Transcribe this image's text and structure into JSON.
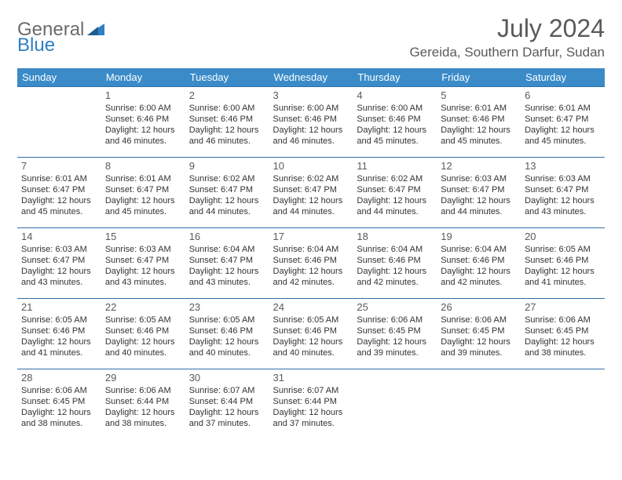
{
  "brand": {
    "part1": "General",
    "part2": "Blue"
  },
  "title": "July 2024",
  "location": "Gereida, Southern Darfur, Sudan",
  "colors": {
    "header_bg": "#3b8bc9",
    "header_text": "#ffffff",
    "row_border": "#2f6fa8",
    "brand_gray": "#6b6b6b",
    "brand_blue": "#2f7fc2",
    "text": "#333333",
    "title_gray": "#5a5a5a"
  },
  "weekdays": [
    "Sunday",
    "Monday",
    "Tuesday",
    "Wednesday",
    "Thursday",
    "Friday",
    "Saturday"
  ],
  "weeks": [
    [
      null,
      {
        "n": "1",
        "sr": "Sunrise: 6:00 AM",
        "ss": "Sunset: 6:46 PM",
        "dl": "Daylight: 12 hours and 46 minutes."
      },
      {
        "n": "2",
        "sr": "Sunrise: 6:00 AM",
        "ss": "Sunset: 6:46 PM",
        "dl": "Daylight: 12 hours and 46 minutes."
      },
      {
        "n": "3",
        "sr": "Sunrise: 6:00 AM",
        "ss": "Sunset: 6:46 PM",
        "dl": "Daylight: 12 hours and 46 minutes."
      },
      {
        "n": "4",
        "sr": "Sunrise: 6:00 AM",
        "ss": "Sunset: 6:46 PM",
        "dl": "Daylight: 12 hours and 45 minutes."
      },
      {
        "n": "5",
        "sr": "Sunrise: 6:01 AM",
        "ss": "Sunset: 6:46 PM",
        "dl": "Daylight: 12 hours and 45 minutes."
      },
      {
        "n": "6",
        "sr": "Sunrise: 6:01 AM",
        "ss": "Sunset: 6:47 PM",
        "dl": "Daylight: 12 hours and 45 minutes."
      }
    ],
    [
      {
        "n": "7",
        "sr": "Sunrise: 6:01 AM",
        "ss": "Sunset: 6:47 PM",
        "dl": "Daylight: 12 hours and 45 minutes."
      },
      {
        "n": "8",
        "sr": "Sunrise: 6:01 AM",
        "ss": "Sunset: 6:47 PM",
        "dl": "Daylight: 12 hours and 45 minutes."
      },
      {
        "n": "9",
        "sr": "Sunrise: 6:02 AM",
        "ss": "Sunset: 6:47 PM",
        "dl": "Daylight: 12 hours and 44 minutes."
      },
      {
        "n": "10",
        "sr": "Sunrise: 6:02 AM",
        "ss": "Sunset: 6:47 PM",
        "dl": "Daylight: 12 hours and 44 minutes."
      },
      {
        "n": "11",
        "sr": "Sunrise: 6:02 AM",
        "ss": "Sunset: 6:47 PM",
        "dl": "Daylight: 12 hours and 44 minutes."
      },
      {
        "n": "12",
        "sr": "Sunrise: 6:03 AM",
        "ss": "Sunset: 6:47 PM",
        "dl": "Daylight: 12 hours and 44 minutes."
      },
      {
        "n": "13",
        "sr": "Sunrise: 6:03 AM",
        "ss": "Sunset: 6:47 PM",
        "dl": "Daylight: 12 hours and 43 minutes."
      }
    ],
    [
      {
        "n": "14",
        "sr": "Sunrise: 6:03 AM",
        "ss": "Sunset: 6:47 PM",
        "dl": "Daylight: 12 hours and 43 minutes."
      },
      {
        "n": "15",
        "sr": "Sunrise: 6:03 AM",
        "ss": "Sunset: 6:47 PM",
        "dl": "Daylight: 12 hours and 43 minutes."
      },
      {
        "n": "16",
        "sr": "Sunrise: 6:04 AM",
        "ss": "Sunset: 6:47 PM",
        "dl": "Daylight: 12 hours and 43 minutes."
      },
      {
        "n": "17",
        "sr": "Sunrise: 6:04 AM",
        "ss": "Sunset: 6:46 PM",
        "dl": "Daylight: 12 hours and 42 minutes."
      },
      {
        "n": "18",
        "sr": "Sunrise: 6:04 AM",
        "ss": "Sunset: 6:46 PM",
        "dl": "Daylight: 12 hours and 42 minutes."
      },
      {
        "n": "19",
        "sr": "Sunrise: 6:04 AM",
        "ss": "Sunset: 6:46 PM",
        "dl": "Daylight: 12 hours and 42 minutes."
      },
      {
        "n": "20",
        "sr": "Sunrise: 6:05 AM",
        "ss": "Sunset: 6:46 PM",
        "dl": "Daylight: 12 hours and 41 minutes."
      }
    ],
    [
      {
        "n": "21",
        "sr": "Sunrise: 6:05 AM",
        "ss": "Sunset: 6:46 PM",
        "dl": "Daylight: 12 hours and 41 minutes."
      },
      {
        "n": "22",
        "sr": "Sunrise: 6:05 AM",
        "ss": "Sunset: 6:46 PM",
        "dl": "Daylight: 12 hours and 40 minutes."
      },
      {
        "n": "23",
        "sr": "Sunrise: 6:05 AM",
        "ss": "Sunset: 6:46 PM",
        "dl": "Daylight: 12 hours and 40 minutes."
      },
      {
        "n": "24",
        "sr": "Sunrise: 6:05 AM",
        "ss": "Sunset: 6:46 PM",
        "dl": "Daylight: 12 hours and 40 minutes."
      },
      {
        "n": "25",
        "sr": "Sunrise: 6:06 AM",
        "ss": "Sunset: 6:45 PM",
        "dl": "Daylight: 12 hours and 39 minutes."
      },
      {
        "n": "26",
        "sr": "Sunrise: 6:06 AM",
        "ss": "Sunset: 6:45 PM",
        "dl": "Daylight: 12 hours and 39 minutes."
      },
      {
        "n": "27",
        "sr": "Sunrise: 6:06 AM",
        "ss": "Sunset: 6:45 PM",
        "dl": "Daylight: 12 hours and 38 minutes."
      }
    ],
    [
      {
        "n": "28",
        "sr": "Sunrise: 6:06 AM",
        "ss": "Sunset: 6:45 PM",
        "dl": "Daylight: 12 hours and 38 minutes."
      },
      {
        "n": "29",
        "sr": "Sunrise: 6:06 AM",
        "ss": "Sunset: 6:44 PM",
        "dl": "Daylight: 12 hours and 38 minutes."
      },
      {
        "n": "30",
        "sr": "Sunrise: 6:07 AM",
        "ss": "Sunset: 6:44 PM",
        "dl": "Daylight: 12 hours and 37 minutes."
      },
      {
        "n": "31",
        "sr": "Sunrise: 6:07 AM",
        "ss": "Sunset: 6:44 PM",
        "dl": "Daylight: 12 hours and 37 minutes."
      },
      null,
      null,
      null
    ]
  ]
}
